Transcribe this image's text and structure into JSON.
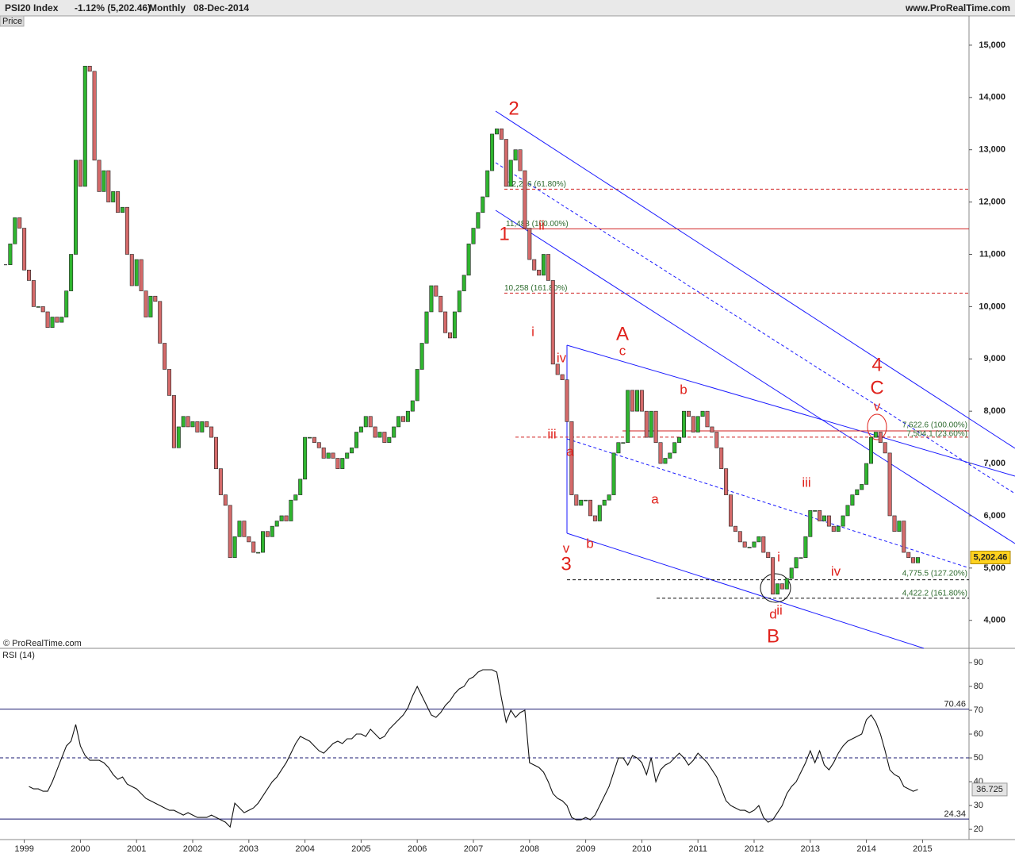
{
  "chart_data": [
    {
      "type": "candlestick",
      "title": "PSI20 Index",
      "subtitle": "-1.12% (5,202.46)",
      "interval": "Monthly",
      "date": "08-Dec-2014",
      "source": "www.ProRealTime.com",
      "panel_label": "Price",
      "copyright": "© ProRealTime.com",
      "last_label": "5,202.46",
      "up_color": "#2fb52f",
      "down_color": "#d46a6a",
      "values": [
        10800,
        11200,
        11700,
        11500,
        10700,
        10500,
        10000,
        10000,
        9900,
        9600,
        9800,
        9700,
        9800,
        10300,
        11000,
        12800,
        12300,
        14600,
        14500,
        12800,
        12200,
        12600,
        12000,
        12200,
        11800,
        11900,
        11000,
        10400,
        10900,
        10300,
        9800,
        10200,
        10100,
        9300,
        8800,
        8300,
        7300,
        7700,
        7900,
        7700,
        7800,
        7600,
        7800,
        7700,
        7500,
        6900,
        6400,
        6200,
        5200,
        5600,
        5900,
        5600,
        5500,
        5300,
        5300,
        5700,
        5600,
        5800,
        5900,
        6000,
        5900,
        6300,
        6400,
        6700,
        7500,
        7500,
        7400,
        7300,
        7100,
        7200,
        7100,
        6900,
        7100,
        7200,
        7300,
        7600,
        7700,
        7900,
        7700,
        7500,
        7600,
        7400,
        7500,
        7700,
        7900,
        7800,
        8000,
        8200,
        8800,
        9300,
        9900,
        10400,
        10200,
        9900,
        9500,
        9400,
        9900,
        10300,
        10600,
        11200,
        11500,
        11800,
        12100,
        12600,
        13300,
        13400,
        13200,
        12300,
        12800,
        13000,
        12600,
        11500,
        10900,
        10700,
        10600,
        11000,
        10500,
        8900,
        8700,
        8600,
        7800,
        6400,
        6200,
        6300,
        6300,
        6000,
        5900,
        6200,
        6300,
        6400,
        7200,
        7400,
        7400,
        8400,
        8000,
        8400,
        8000,
        7500,
        8000,
        7400,
        7000,
        7100,
        7200,
        7400,
        7500,
        8000,
        7900,
        7600,
        7900,
        8000,
        7700,
        7600,
        7300,
        6900,
        6400,
        5800,
        5700,
        5500,
        5400,
        5400,
        5500,
        5600,
        5300,
        5200,
        4500,
        4700,
        4600,
        4800,
        5000,
        5200,
        5200,
        5600,
        6100,
        6100,
        5900,
        6000,
        5800,
        5700,
        5800,
        6000,
        6200,
        6400,
        6500,
        6600,
        7000,
        7500,
        7600,
        7400,
        7200,
        6000,
        5700,
        5900,
        5300,
        5200,
        5100,
        5202.46,
        null
      ],
      "ylim": [
        3480,
        15530
      ],
      "yticks": [
        {
          "value": 4000,
          "label": "4,000"
        },
        {
          "value": 5000,
          "label": "5,000"
        },
        {
          "value": 6000,
          "label": "6,000"
        },
        {
          "value": 7000,
          "label": "7,000"
        },
        {
          "value": 8000,
          "label": "8,000"
        },
        {
          "value": 9000,
          "label": "9,000"
        },
        {
          "value": 10000,
          "label": "10,000"
        },
        {
          "value": 11000,
          "label": "11,000"
        },
        {
          "value": 12000,
          "label": "12,000"
        },
        {
          "value": 13000,
          "label": "13,000"
        },
        {
          "value": 14000,
          "label": "14,000"
        },
        {
          "value": 15000,
          "label": "15,000"
        }
      ],
      "fib_levels": [
        {
          "value": 12246,
          "label": "12,246 (61.80%)"
        },
        {
          "value": 11488,
          "label": "11,488 (100.00%)"
        },
        {
          "value": 10258,
          "label": "10,258 (161.80%)"
        },
        {
          "value": 7622.6,
          "label": "7,622.6 (100.00%)"
        },
        {
          "value": 7504.1,
          "label": "7,504.1 (23.60%)"
        },
        {
          "value": 4775.5,
          "label": "4,775.5 (127.20%)"
        },
        {
          "value": 4422.2,
          "label": "4,422.2 (161.80%)"
        }
      ],
      "annotations": [
        "2",
        "1",
        "ii",
        "i",
        "iv",
        "iii",
        "a",
        "v",
        "3",
        "b",
        "A",
        "c",
        "a",
        "b",
        "4",
        "C",
        "v",
        "iii",
        "i",
        "iv",
        "d",
        "ii",
        "B"
      ]
    },
    {
      "type": "line",
      "title": "RSI (14)",
      "color": "#111111",
      "categories": [
        null,
        null,
        null,
        null,
        "1999",
        null,
        null,
        null,
        null,
        null,
        null,
        null,
        null,
        null,
        null,
        null,
        "2000",
        null,
        null,
        null,
        null,
        null,
        null,
        null,
        null,
        null,
        null,
        null,
        "2001",
        null,
        null,
        null,
        null,
        null,
        null,
        null,
        null,
        null,
        null,
        null,
        "2002",
        null,
        null,
        null,
        null,
        null,
        null,
        null,
        null,
        null,
        null,
        null,
        "2003",
        null,
        null,
        null,
        null,
        null,
        null,
        null,
        null,
        null,
        null,
        null,
        "2004",
        null,
        null,
        null,
        null,
        null,
        null,
        null,
        null,
        null,
        null,
        null,
        "2005",
        null,
        null,
        null,
        null,
        null,
        null,
        null,
        null,
        null,
        null,
        null,
        "2006",
        null,
        null,
        null,
        null,
        null,
        null,
        null,
        null,
        null,
        null,
        null,
        "2007",
        null,
        null,
        null,
        null,
        null,
        null,
        null,
        null,
        null,
        null,
        null,
        "2008",
        null,
        null,
        null,
        null,
        null,
        null,
        null,
        null,
        null,
        null,
        null,
        "2009",
        null,
        null,
        null,
        null,
        null,
        null,
        null,
        null,
        null,
        null,
        null,
        "2010",
        null,
        null,
        null,
        null,
        null,
        null,
        null,
        null,
        null,
        null,
        null,
        "2011",
        null,
        null,
        null,
        null,
        null,
        null,
        null,
        null,
        null,
        null,
        null,
        "2012",
        null,
        null,
        null,
        null,
        null,
        null,
        null,
        null,
        null,
        null,
        null,
        "2013",
        null,
        null,
        null,
        null,
        null,
        null,
        null,
        null,
        null,
        null,
        null,
        "2014",
        null,
        null,
        null,
        null,
        null,
        null,
        null,
        null,
        null,
        null,
        null,
        "2015"
      ],
      "values": [
        null,
        null,
        null,
        null,
        null,
        38,
        37,
        37,
        36,
        36,
        40,
        45,
        50,
        55,
        57,
        64,
        55,
        51,
        49,
        49,
        49,
        48,
        46,
        43,
        41,
        42,
        39,
        38,
        37,
        35,
        33,
        32,
        31,
        30,
        29,
        28,
        28,
        27,
        26,
        27,
        26,
        25,
        25,
        25,
        26,
        25,
        24,
        23,
        21,
        31,
        29,
        27,
        28,
        29,
        31,
        34,
        37,
        40,
        42,
        45,
        48,
        52,
        56,
        59,
        58,
        57,
        55,
        53,
        52,
        54,
        56,
        57,
        56,
        58,
        58,
        60,
        60,
        59,
        62,
        60,
        58,
        59,
        62,
        64,
        66,
        68,
        71,
        76,
        80,
        76,
        72,
        68,
        67,
        69,
        72,
        74,
        77,
        79,
        80,
        83,
        84,
        86,
        87,
        87,
        87,
        86,
        75,
        65,
        70,
        67,
        69,
        70,
        48,
        47,
        46,
        44,
        40,
        35,
        33,
        32,
        30,
        25,
        24,
        24,
        25,
        24,
        26,
        30,
        34,
        38,
        44,
        50,
        50,
        47,
        51,
        50,
        48,
        43,
        50,
        40,
        45,
        47,
        48,
        50,
        52,
        50,
        47,
        49,
        52,
        50,
        48,
        45,
        42,
        37,
        32,
        30,
        29,
        28,
        28,
        27,
        28,
        30,
        25,
        23,
        24,
        27,
        30,
        35,
        38,
        40,
        44,
        48,
        53,
        48,
        53,
        47,
        45,
        48,
        52,
        55,
        57,
        58,
        59,
        60,
        66,
        68,
        65,
        60,
        53,
        45,
        43,
        42,
        38,
        37,
        36,
        36.725,
        null
      ],
      "ylim": [
        15.7,
        95
      ],
      "yticks": [
        20,
        30,
        40,
        50,
        60,
        70,
        80,
        90
      ],
      "levels": [
        70.46,
        24.34
      ],
      "midline": 50
    }
  ]
}
